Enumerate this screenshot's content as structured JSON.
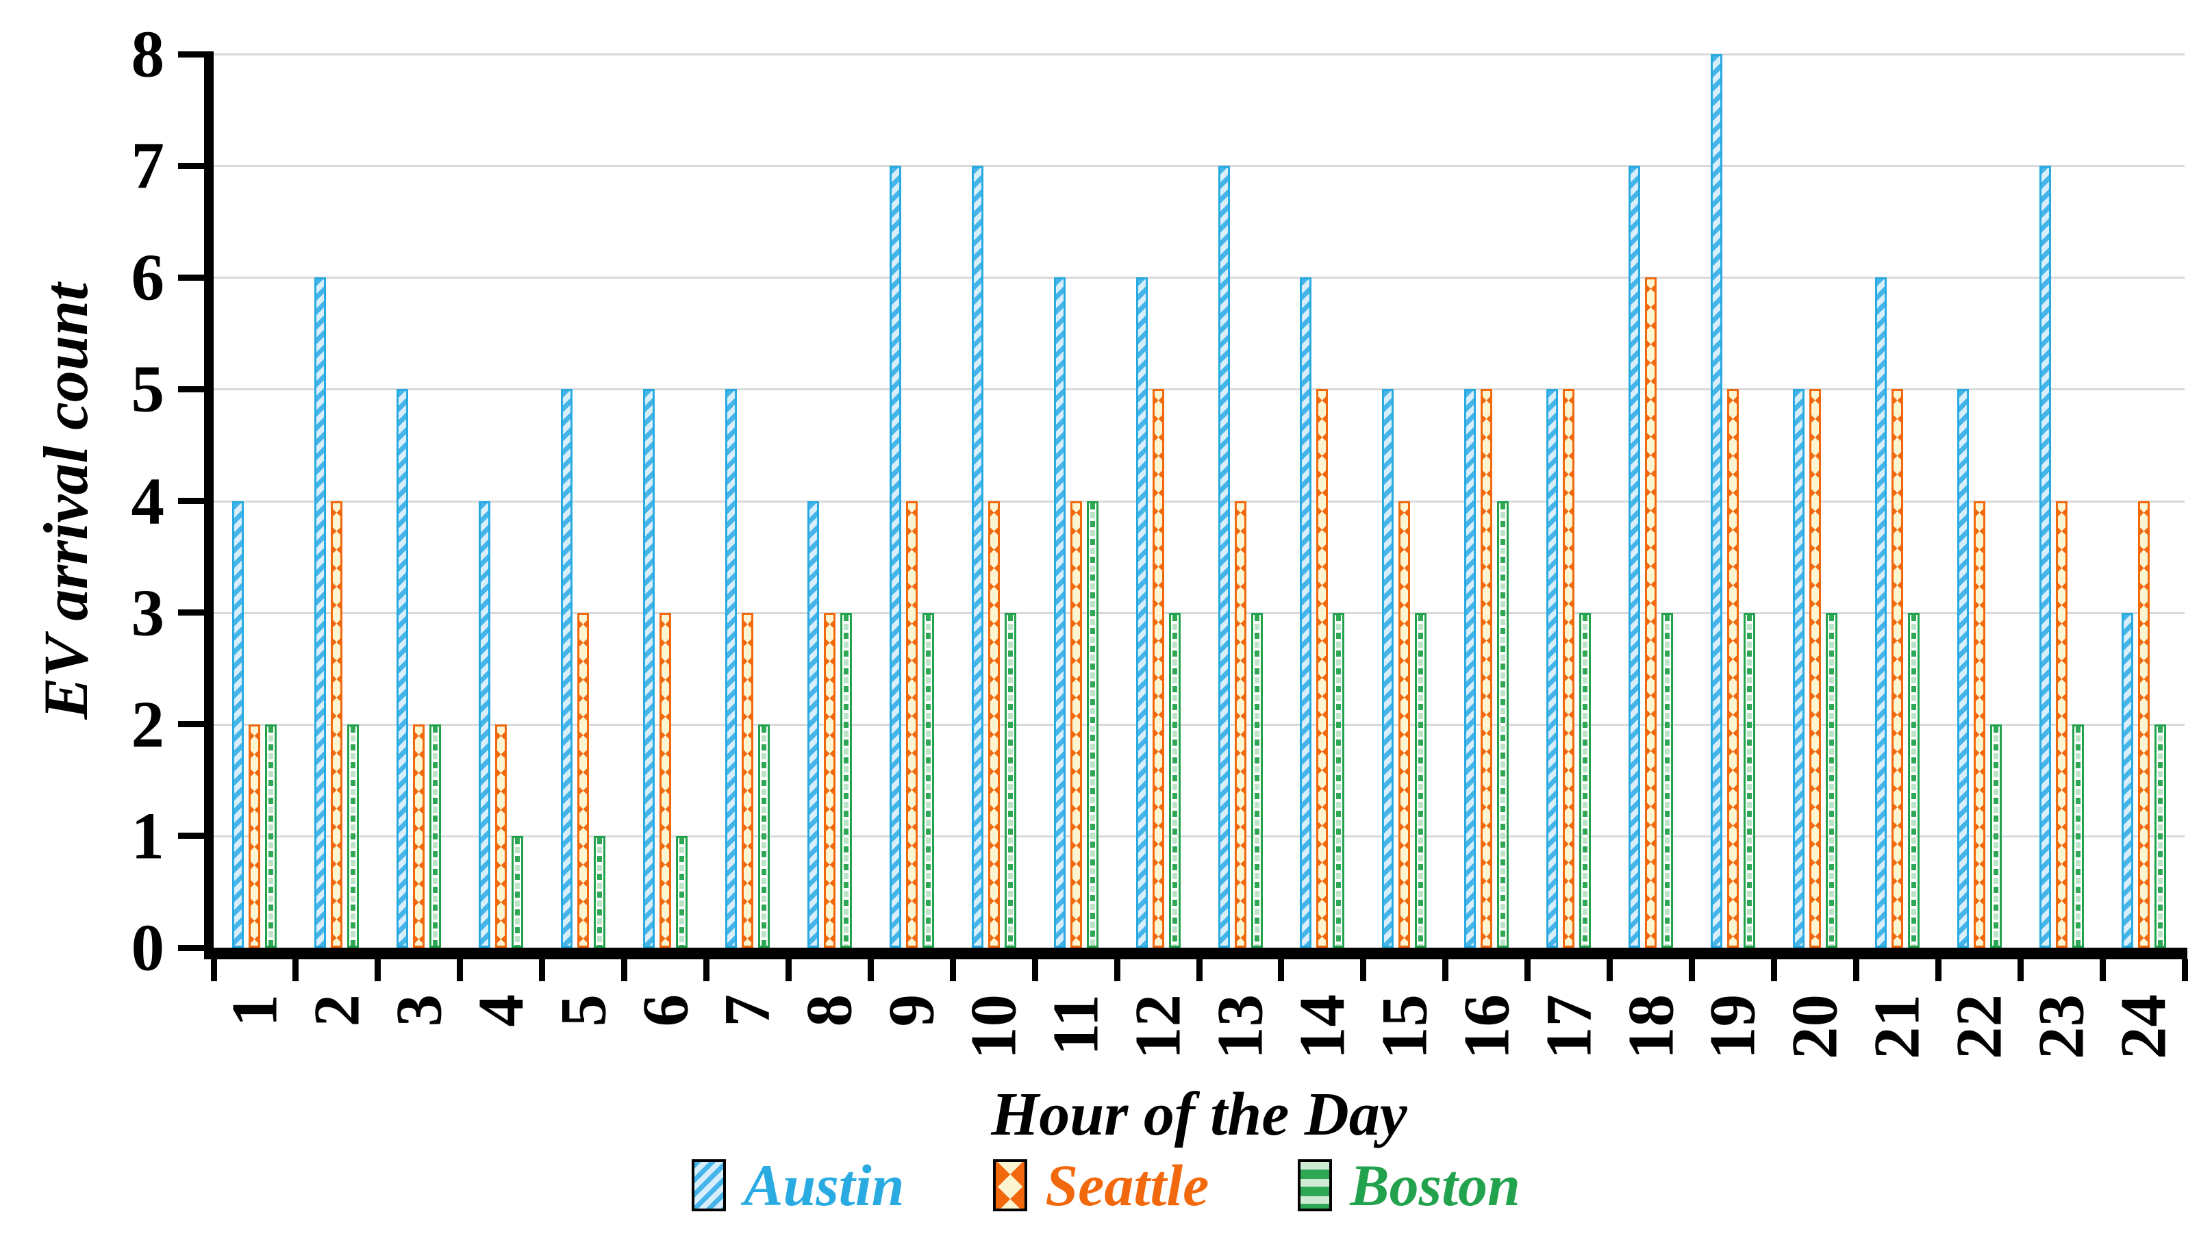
{
  "chart_data": {
    "type": "bar",
    "title": "",
    "xlabel": "Hour of the Day",
    "ylabel": "EV arrival count",
    "categories": [
      "1",
      "2",
      "3",
      "4",
      "5",
      "6",
      "7",
      "8",
      "9",
      "10",
      "11",
      "12",
      "13",
      "14",
      "15",
      "16",
      "17",
      "18",
      "19",
      "20",
      "21",
      "22",
      "23",
      "24"
    ],
    "series": [
      {
        "name": "Austin",
        "color": "#29ABE2",
        "values": [
          4,
          6,
          5,
          4,
          5,
          5,
          5,
          4,
          7,
          7,
          6,
          6,
          7,
          6,
          5,
          5,
          5,
          7,
          8,
          5,
          6,
          5,
          7,
          3
        ]
      },
      {
        "name": "Seattle",
        "color": "#F2690D",
        "values": [
          2,
          4,
          2,
          2,
          3,
          3,
          3,
          3,
          4,
          4,
          4,
          5,
          4,
          5,
          4,
          5,
          5,
          6,
          5,
          5,
          5,
          4,
          4,
          4
        ]
      },
      {
        "name": "Boston",
        "color": "#23A24D",
        "values": [
          2,
          2,
          2,
          1,
          1,
          1,
          2,
          3,
          3,
          3,
          4,
          3,
          3,
          3,
          3,
          4,
          3,
          3,
          3,
          3,
          3,
          2,
          2,
          2
        ]
      }
    ],
    "ylim": [
      0,
      8
    ],
    "yticks": [
      "0",
      "1",
      "2",
      "3",
      "4",
      "5",
      "6",
      "7",
      "8"
    ],
    "grid": "horizontal gridlines on, light gray",
    "legend_position": "bottom",
    "axis_color": "#000000",
    "gridline_color": "#D9D9D9"
  }
}
